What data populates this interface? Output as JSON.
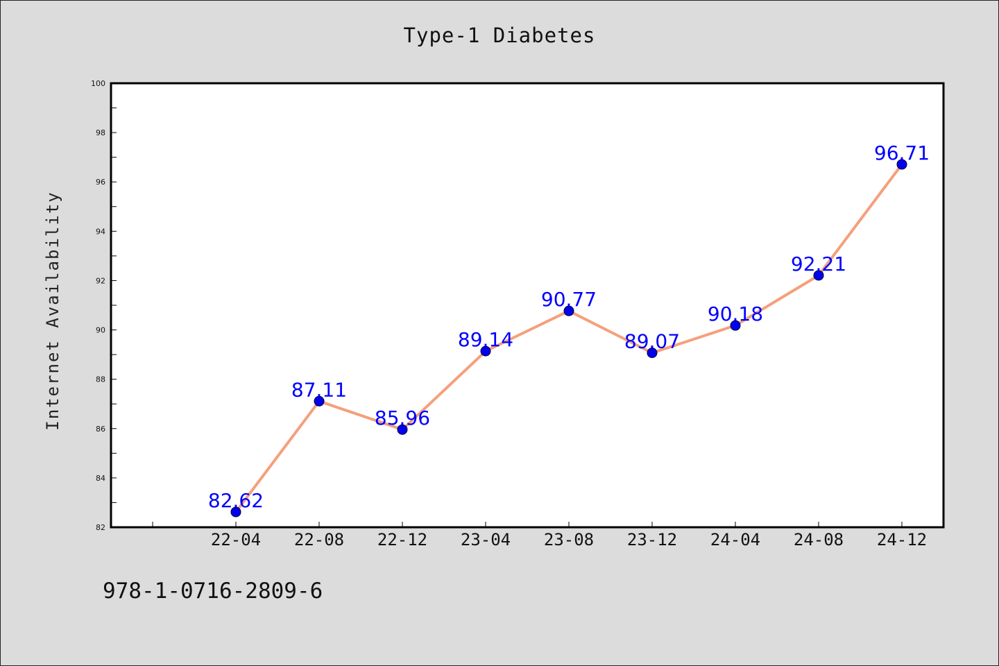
{
  "chart_data": {
    "type": "line",
    "title": "Type-1 Diabetes",
    "xlabel": "",
    "ylabel": "Internet Availability",
    "categories": [
      "22-04",
      "22-08",
      "22-12",
      "23-04",
      "23-08",
      "23-12",
      "24-04",
      "24-08",
      "24-12"
    ],
    "series": [
      {
        "values": [
          82.62,
          87.11,
          85.96,
          89.14,
          90.77,
          89.07,
          90.18,
          92.21,
          96.71
        ],
        "data_labels": [
          "82.62",
          "87.11",
          "85.96",
          "89.14",
          "90.77",
          "89.07",
          "90.18",
          "92.21",
          "96.71"
        ],
        "line_color": "#f4a07c",
        "marker_color": "#0000ee",
        "label_color": "#0000ff"
      }
    ],
    "ylim": [
      82,
      100
    ],
    "yticks": [
      82,
      84,
      86,
      88,
      90,
      92,
      94,
      96,
      98,
      100
    ],
    "grid": false,
    "legend": "none"
  },
  "footer": {
    "text": "978-1-0716-2809-6"
  },
  "colors": {
    "background": "#dcdcdc",
    "plot_area": "#ffffff"
  }
}
